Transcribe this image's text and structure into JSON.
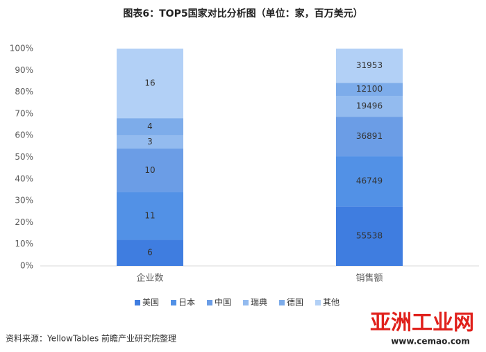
{
  "chart_data": {
    "type": "bar",
    "stacked": "percent",
    "title": "图表6：TOP5国家对比分析图（单位：家，百万美元）",
    "categories": [
      "企业数",
      "销售额"
    ],
    "series": [
      {
        "name": "美国",
        "color": "#3f7de0",
        "values": [
          6,
          55538
        ]
      },
      {
        "name": "日本",
        "color": "#5291e6",
        "values": [
          11,
          46749
        ]
      },
      {
        "name": "中国",
        "color": "#6b9de6",
        "values": [
          10,
          36891
        ]
      },
      {
        "name": "瑞典",
        "color": "#93bbef",
        "values": [
          3,
          19496
        ]
      },
      {
        "name": "德国",
        "color": "#7dacea",
        "values": [
          4,
          12100
        ]
      },
      {
        "name": "其他",
        "color": "#b2d0f6",
        "values": [
          16,
          31953
        ]
      }
    ],
    "ylim": [
      0,
      100
    ],
    "yticks": [
      {
        "value": 0,
        "label": "0%"
      },
      {
        "value": 10,
        "label": "10%"
      },
      {
        "value": 20,
        "label": "20%"
      },
      {
        "value": 30,
        "label": "30%"
      },
      {
        "value": 40,
        "label": "40%"
      },
      {
        "value": 50,
        "label": "50%"
      },
      {
        "value": 60,
        "label": "60%"
      },
      {
        "value": 70,
        "label": "70%"
      },
      {
        "value": 80,
        "label": "80%"
      },
      {
        "value": 90,
        "label": "90%"
      },
      {
        "value": 100,
        "label": "100%"
      }
    ],
    "legend": "bottom",
    "source": "资料来源：YellowTables 前瞻产业研究院整理",
    "logo": "亚洲工业网",
    "logo_url": "www.cemao.com"
  }
}
